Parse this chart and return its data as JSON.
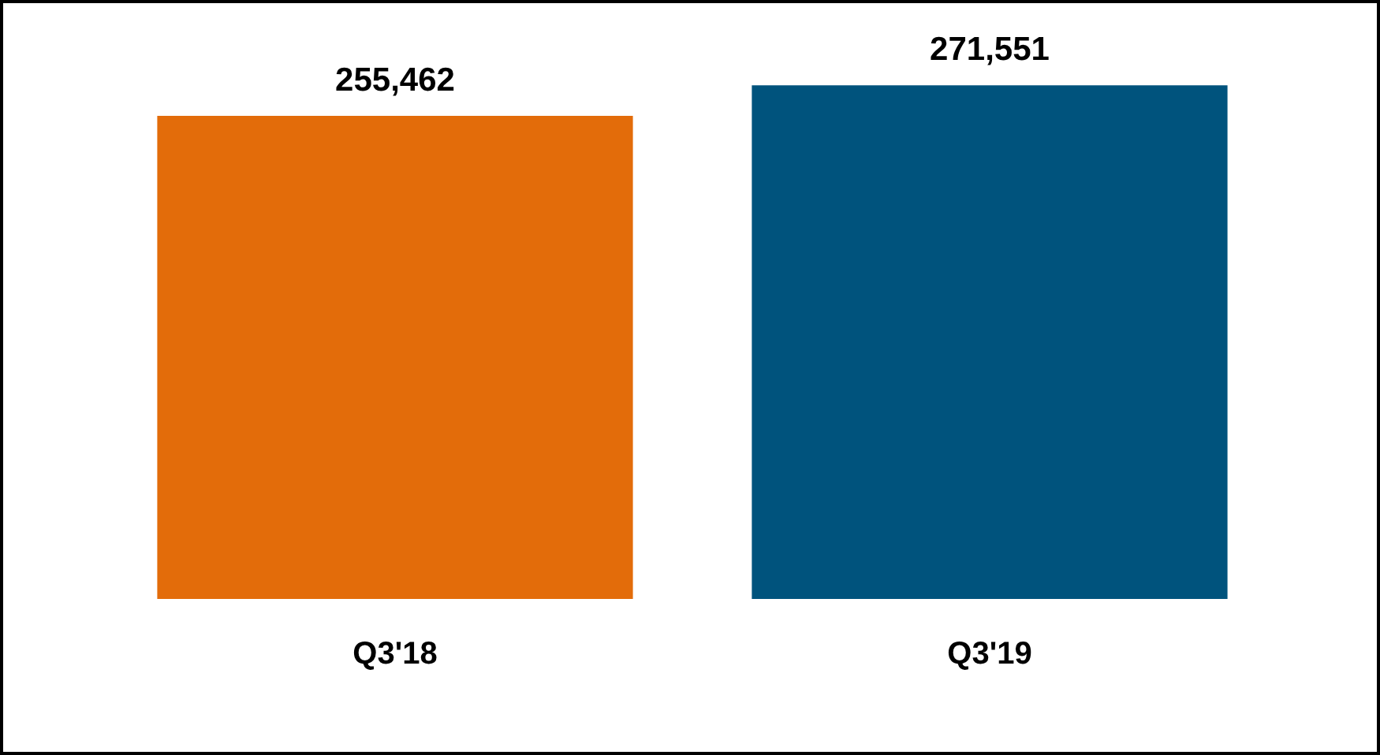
{
  "chart_data": {
    "type": "bar",
    "categories": [
      "Q3'18",
      "Q3'19"
    ],
    "values": [
      255462,
      271551
    ],
    "value_labels": [
      "255,462",
      "271,551"
    ],
    "colors": [
      "#e36c0a",
      "#00537d"
    ],
    "tick_labels": "x"
  }
}
